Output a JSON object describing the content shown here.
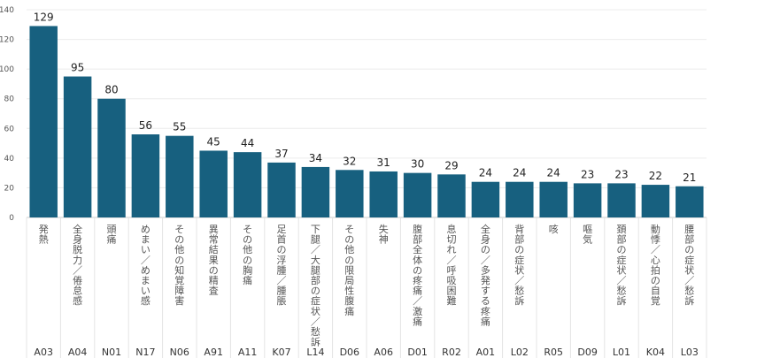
{
  "chart_data": {
    "type": "bar",
    "title": "",
    "xlabel": "",
    "ylabel": "",
    "ylim": [
      0,
      140
    ],
    "yticks": [
      0,
      20,
      40,
      60,
      80,
      100,
      120,
      140
    ],
    "grid": true,
    "bar_color": "#17607f",
    "categories": [
      {
        "code": "A03",
        "label": "発熱",
        "value": 129
      },
      {
        "code": "A04",
        "label": "全身脱力／倦怠感",
        "value": 95
      },
      {
        "code": "N01",
        "label": "頭痛",
        "value": 80
      },
      {
        "code": "N17",
        "label": "めまい／めまい感",
        "value": 56
      },
      {
        "code": "N06",
        "label": "その他の知覚障害",
        "value": 55
      },
      {
        "code": "A91",
        "label": "異常結果の精査",
        "value": 45
      },
      {
        "code": "A11",
        "label": "その他の胸痛",
        "value": 44
      },
      {
        "code": "K07",
        "label": "足首の浮腫／腫脹",
        "value": 37
      },
      {
        "code": "L14",
        "label": "下腿／大腿部の症状／愁訴",
        "value": 34
      },
      {
        "code": "D06",
        "label": "その他の限局性腹痛",
        "value": 32
      },
      {
        "code": "A06",
        "label": "失神",
        "value": 31
      },
      {
        "code": "D01",
        "label": "腹部全体の疼痛／激痛",
        "value": 30
      },
      {
        "code": "R02",
        "label": "息切れ／呼吸困難",
        "value": 29
      },
      {
        "code": "A01",
        "label": "全身の／多発する疼痛",
        "value": 24
      },
      {
        "code": "L02",
        "label": "背部の症状／愁訴",
        "value": 24
      },
      {
        "code": "R05",
        "label": "咳",
        "value": 24
      },
      {
        "code": "D09",
        "label": "嘔気",
        "value": 23
      },
      {
        "code": "L01",
        "label": "頚部の症状／愁訴",
        "value": 23
      },
      {
        "code": "K04",
        "label": "動悸／心拍の自覚",
        "value": 22
      },
      {
        "code": "L03",
        "label": "腰部の症状／愁訴",
        "value": 21
      }
    ]
  }
}
